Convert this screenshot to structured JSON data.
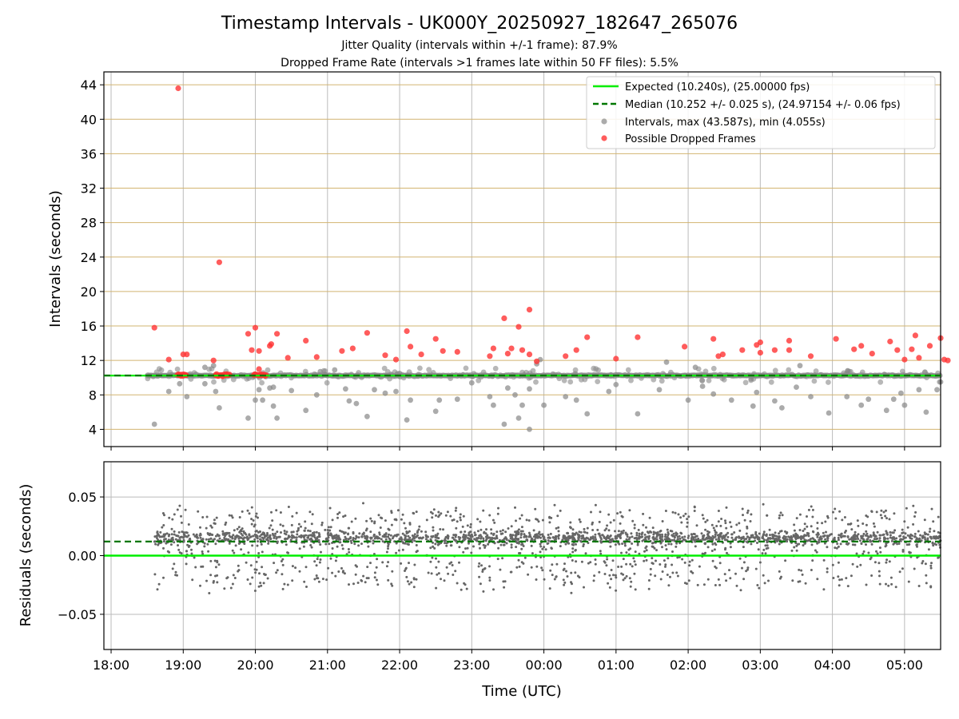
{
  "chart_data": {
    "type": "scatter",
    "title": "Timestamp Intervals - UK000Y_20250927_182647_265076",
    "subtitle_1": "Jitter Quality (intervals within +/-1 frame): 87.9%",
    "subtitle_2": "Dropped Frame Rate (intervals >1 frames late within 50 FF files): 5.5%",
    "xlabel": "Time (UTC)",
    "x_ticks": [
      "18:00",
      "19:00",
      "20:00",
      "21:00",
      "22:00",
      "23:00",
      "00:00",
      "01:00",
      "02:00",
      "03:00",
      "04:00",
      "05:00"
    ],
    "x_range_hours": [
      17.9,
      29.5
    ],
    "top_panel": {
      "ylabel": "Intervals (seconds)",
      "ylim": [
        2,
        45.5
      ],
      "y_ticks": [
        4,
        8,
        12,
        16,
        20,
        24,
        28,
        32,
        36,
        40,
        44
      ],
      "expected_value": 10.24,
      "median_value": 10.252,
      "legend": [
        "Expected (10.240s), (25.00000 fps)",
        "Median (10.252 +/- 0.025 s), (24.97154 +/- 0.06 fps)",
        "Intervals, max (43.587s), min (4.055s)",
        "Possible Dropped Frames"
      ],
      "intervals_outliers": [
        [
          18.6,
          4.6
        ],
        [
          18.8,
          8.4
        ],
        [
          18.95,
          9.3
        ],
        [
          19.05,
          7.8
        ],
        [
          19.3,
          9.3
        ],
        [
          19.45,
          8.4
        ],
        [
          19.5,
          6.5
        ],
        [
          19.3,
          11.2
        ],
        [
          19.42,
          11.4
        ],
        [
          19.9,
          5.3
        ],
        [
          20.0,
          7.4
        ],
        [
          20.05,
          8.6
        ],
        [
          20.1,
          7.4
        ],
        [
          20.2,
          8.8
        ],
        [
          20.25,
          6.7
        ],
        [
          20.3,
          5.3
        ],
        [
          20.25,
          8.9
        ],
        [
          20.5,
          8.5
        ],
        [
          20.7,
          6.2
        ],
        [
          20.85,
          8.0
        ],
        [
          20.9,
          10.7
        ],
        [
          21.1,
          10.9
        ],
        [
          21.25,
          8.7
        ],
        [
          21.3,
          7.3
        ],
        [
          21.4,
          7.0
        ],
        [
          21.55,
          5.5
        ],
        [
          21.65,
          8.6
        ],
        [
          21.8,
          8.2
        ],
        [
          21.95,
          8.4
        ],
        [
          22.1,
          5.1
        ],
        [
          22.15,
          7.4
        ],
        [
          22.5,
          6.1
        ],
        [
          22.55,
          7.4
        ],
        [
          22.8,
          7.5
        ],
        [
          23.0,
          9.4
        ],
        [
          23.25,
          7.8
        ],
        [
          23.3,
          6.8
        ],
        [
          23.45,
          4.6
        ],
        [
          23.5,
          8.8
        ],
        [
          23.6,
          8.0
        ],
        [
          23.65,
          5.3
        ],
        [
          23.7,
          6.8
        ],
        [
          23.8,
          4.0
        ],
        [
          23.8,
          8.7
        ],
        [
          23.9,
          11.6
        ],
        [
          24.0,
          6.8
        ],
        [
          24.3,
          7.8
        ],
        [
          24.45,
          7.4
        ],
        [
          24.6,
          5.8
        ],
        [
          24.9,
          8.4
        ],
        [
          25.0,
          9.2
        ],
        [
          25.3,
          5.8
        ],
        [
          25.6,
          8.6
        ],
        [
          25.7,
          11.8
        ],
        [
          26.0,
          7.4
        ],
        [
          26.1,
          11.2
        ],
        [
          26.2,
          9.0
        ],
        [
          26.35,
          8.1
        ],
        [
          26.6,
          7.4
        ],
        [
          26.9,
          6.7
        ],
        [
          26.95,
          8.3
        ],
        [
          27.2,
          7.3
        ],
        [
          27.3,
          6.5
        ],
        [
          27.5,
          8.9
        ],
        [
          27.55,
          11.4
        ],
        [
          27.7,
          7.8
        ],
        [
          27.95,
          5.9
        ],
        [
          28.2,
          7.8
        ],
        [
          28.4,
          6.8
        ],
        [
          28.5,
          7.5
        ],
        [
          28.75,
          6.2
        ],
        [
          28.85,
          7.5
        ],
        [
          28.95,
          8.2
        ],
        [
          29.0,
          6.8
        ],
        [
          29.2,
          8.6
        ],
        [
          29.3,
          6.0
        ],
        [
          29.45,
          8.6
        ],
        [
          29.5,
          9.5
        ],
        [
          23.95,
          12.1
        ],
        [
          22.0,
          10.5
        ]
      ],
      "dropped_frames": [
        [
          18.93,
          43.6
        ],
        [
          19.5,
          23.4
        ],
        [
          18.6,
          15.8
        ],
        [
          18.8,
          12.1
        ],
        [
          19.05,
          12.7
        ],
        [
          19.0,
          12.7
        ],
        [
          19.42,
          12.0
        ],
        [
          19.9,
          15.1
        ],
        [
          19.95,
          13.2
        ],
        [
          20.0,
          15.8
        ],
        [
          20.05,
          13.1
        ],
        [
          20.2,
          13.7
        ],
        [
          20.22,
          13.9
        ],
        [
          20.3,
          15.1
        ],
        [
          20.05,
          11.0
        ],
        [
          20.45,
          12.3
        ],
        [
          20.7,
          14.3
        ],
        [
          20.85,
          12.4
        ],
        [
          21.2,
          13.1
        ],
        [
          21.35,
          13.4
        ],
        [
          21.55,
          15.2
        ],
        [
          21.8,
          12.6
        ],
        [
          21.95,
          12.1
        ],
        [
          22.1,
          15.4
        ],
        [
          22.15,
          13.6
        ],
        [
          22.3,
          12.7
        ],
        [
          22.5,
          14.5
        ],
        [
          22.6,
          13.1
        ],
        [
          22.8,
          13.0
        ],
        [
          23.25,
          12.5
        ],
        [
          23.3,
          13.4
        ],
        [
          23.45,
          16.9
        ],
        [
          23.5,
          12.8
        ],
        [
          23.55,
          13.4
        ],
        [
          23.65,
          15.9
        ],
        [
          23.7,
          13.2
        ],
        [
          23.8,
          17.9
        ],
        [
          23.8,
          12.7
        ],
        [
          23.9,
          11.9
        ],
        [
          24.3,
          12.5
        ],
        [
          24.45,
          13.2
        ],
        [
          24.6,
          14.7
        ],
        [
          25.0,
          12.2
        ],
        [
          25.3,
          14.7
        ],
        [
          25.95,
          13.6
        ],
        [
          26.35,
          14.5
        ],
        [
          26.42,
          12.5
        ],
        [
          26.48,
          12.7
        ],
        [
          26.75,
          13.2
        ],
        [
          26.95,
          13.8
        ],
        [
          27.0,
          14.1
        ],
        [
          27.0,
          12.9
        ],
        [
          27.2,
          13.2
        ],
        [
          27.4,
          13.2
        ],
        [
          27.4,
          14.3
        ],
        [
          27.7,
          12.5
        ],
        [
          28.05,
          14.5
        ],
        [
          28.3,
          13.3
        ],
        [
          28.4,
          13.7
        ],
        [
          28.55,
          12.8
        ],
        [
          28.8,
          14.2
        ],
        [
          28.9,
          13.2
        ],
        [
          29.0,
          12.1
        ],
        [
          29.1,
          13.3
        ],
        [
          29.15,
          14.9
        ],
        [
          29.2,
          12.3
        ],
        [
          29.35,
          13.7
        ],
        [
          29.5,
          14.6
        ],
        [
          29.55,
          12.1
        ],
        [
          29.6,
          12.0
        ]
      ],
      "dropped_clusters": [
        [
          18.92,
          19.05
        ],
        [
          19.45,
          19.65
        ],
        [
          19.98,
          20.15
        ]
      ]
    },
    "bottom_panel": {
      "ylabel": "Residuals (seconds)",
      "ylim": [
        -0.08,
        0.08
      ],
      "y_ticks": [
        "0.05",
        "0.00",
        "−0.05"
      ],
      "y_tick_values": [
        0.05,
        0.0,
        -0.05
      ],
      "expected_residual": 0.0,
      "median_residual": 0.012,
      "x_span_hours": [
        18.6,
        29.5
      ],
      "band_center": 0.015,
      "band_spread": 0.03
    },
    "colors": {
      "expected": "#00ee00",
      "median": "#007700",
      "intervals": "#888888",
      "dropped": "#ff3333",
      "h_grid": "#d2b470",
      "v_grid": "#bbbbbb",
      "residuals": "#666666"
    }
  }
}
